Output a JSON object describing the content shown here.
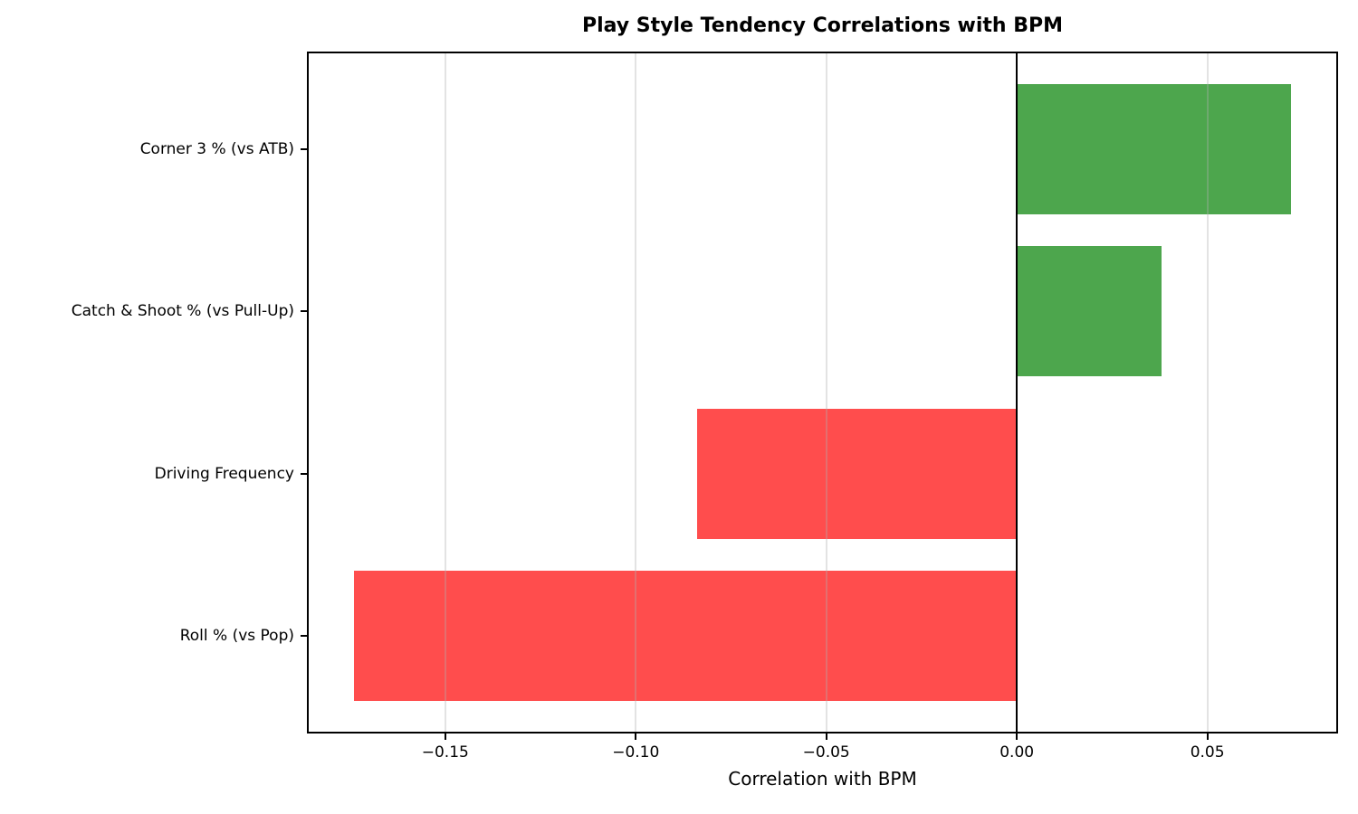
{
  "figure": {
    "title": "Play Style Tendency Correlations with BPM",
    "xlabel": "Correlation with BPM"
  },
  "chart_data": {
    "type": "bar",
    "orientation": "horizontal",
    "title": "Play Style Tendency Correlations with BPM",
    "xlabel": "Correlation with BPM",
    "ylabel": "",
    "categories": [
      "Corner 3 % (vs ATB)",
      "Catch & Shoot % (vs Pull-Up)",
      "Driving Frequency",
      "Roll % (vs Pop)"
    ],
    "values": [
      0.072,
      0.038,
      -0.084,
      -0.174
    ],
    "bar_colors": [
      "#4DA64D",
      "#4DA64D",
      "#FF4D4D",
      "#FF4D4D"
    ],
    "xlim": [
      -0.1863,
      0.0843
    ],
    "xticks": [
      -0.15,
      -0.1,
      -0.05,
      0.0,
      0.05
    ],
    "xtick_labels": [
      "−0.15",
      "−0.10",
      "−0.05",
      "0.00",
      "0.05"
    ],
    "grid": true,
    "grid_axis": "x",
    "grid_above_bars": true,
    "zero_line": true,
    "legend": false,
    "bar_height_frac": 0.8,
    "y_margin_units": 0.6,
    "colors": {
      "positive": "#4DA64D",
      "negative": "#FF4D4D",
      "grid": "rgba(176,176,176,0.35)",
      "zero_line": "#000000",
      "spine": "#000000",
      "text": "#000000",
      "background": "#ffffff"
    }
  }
}
